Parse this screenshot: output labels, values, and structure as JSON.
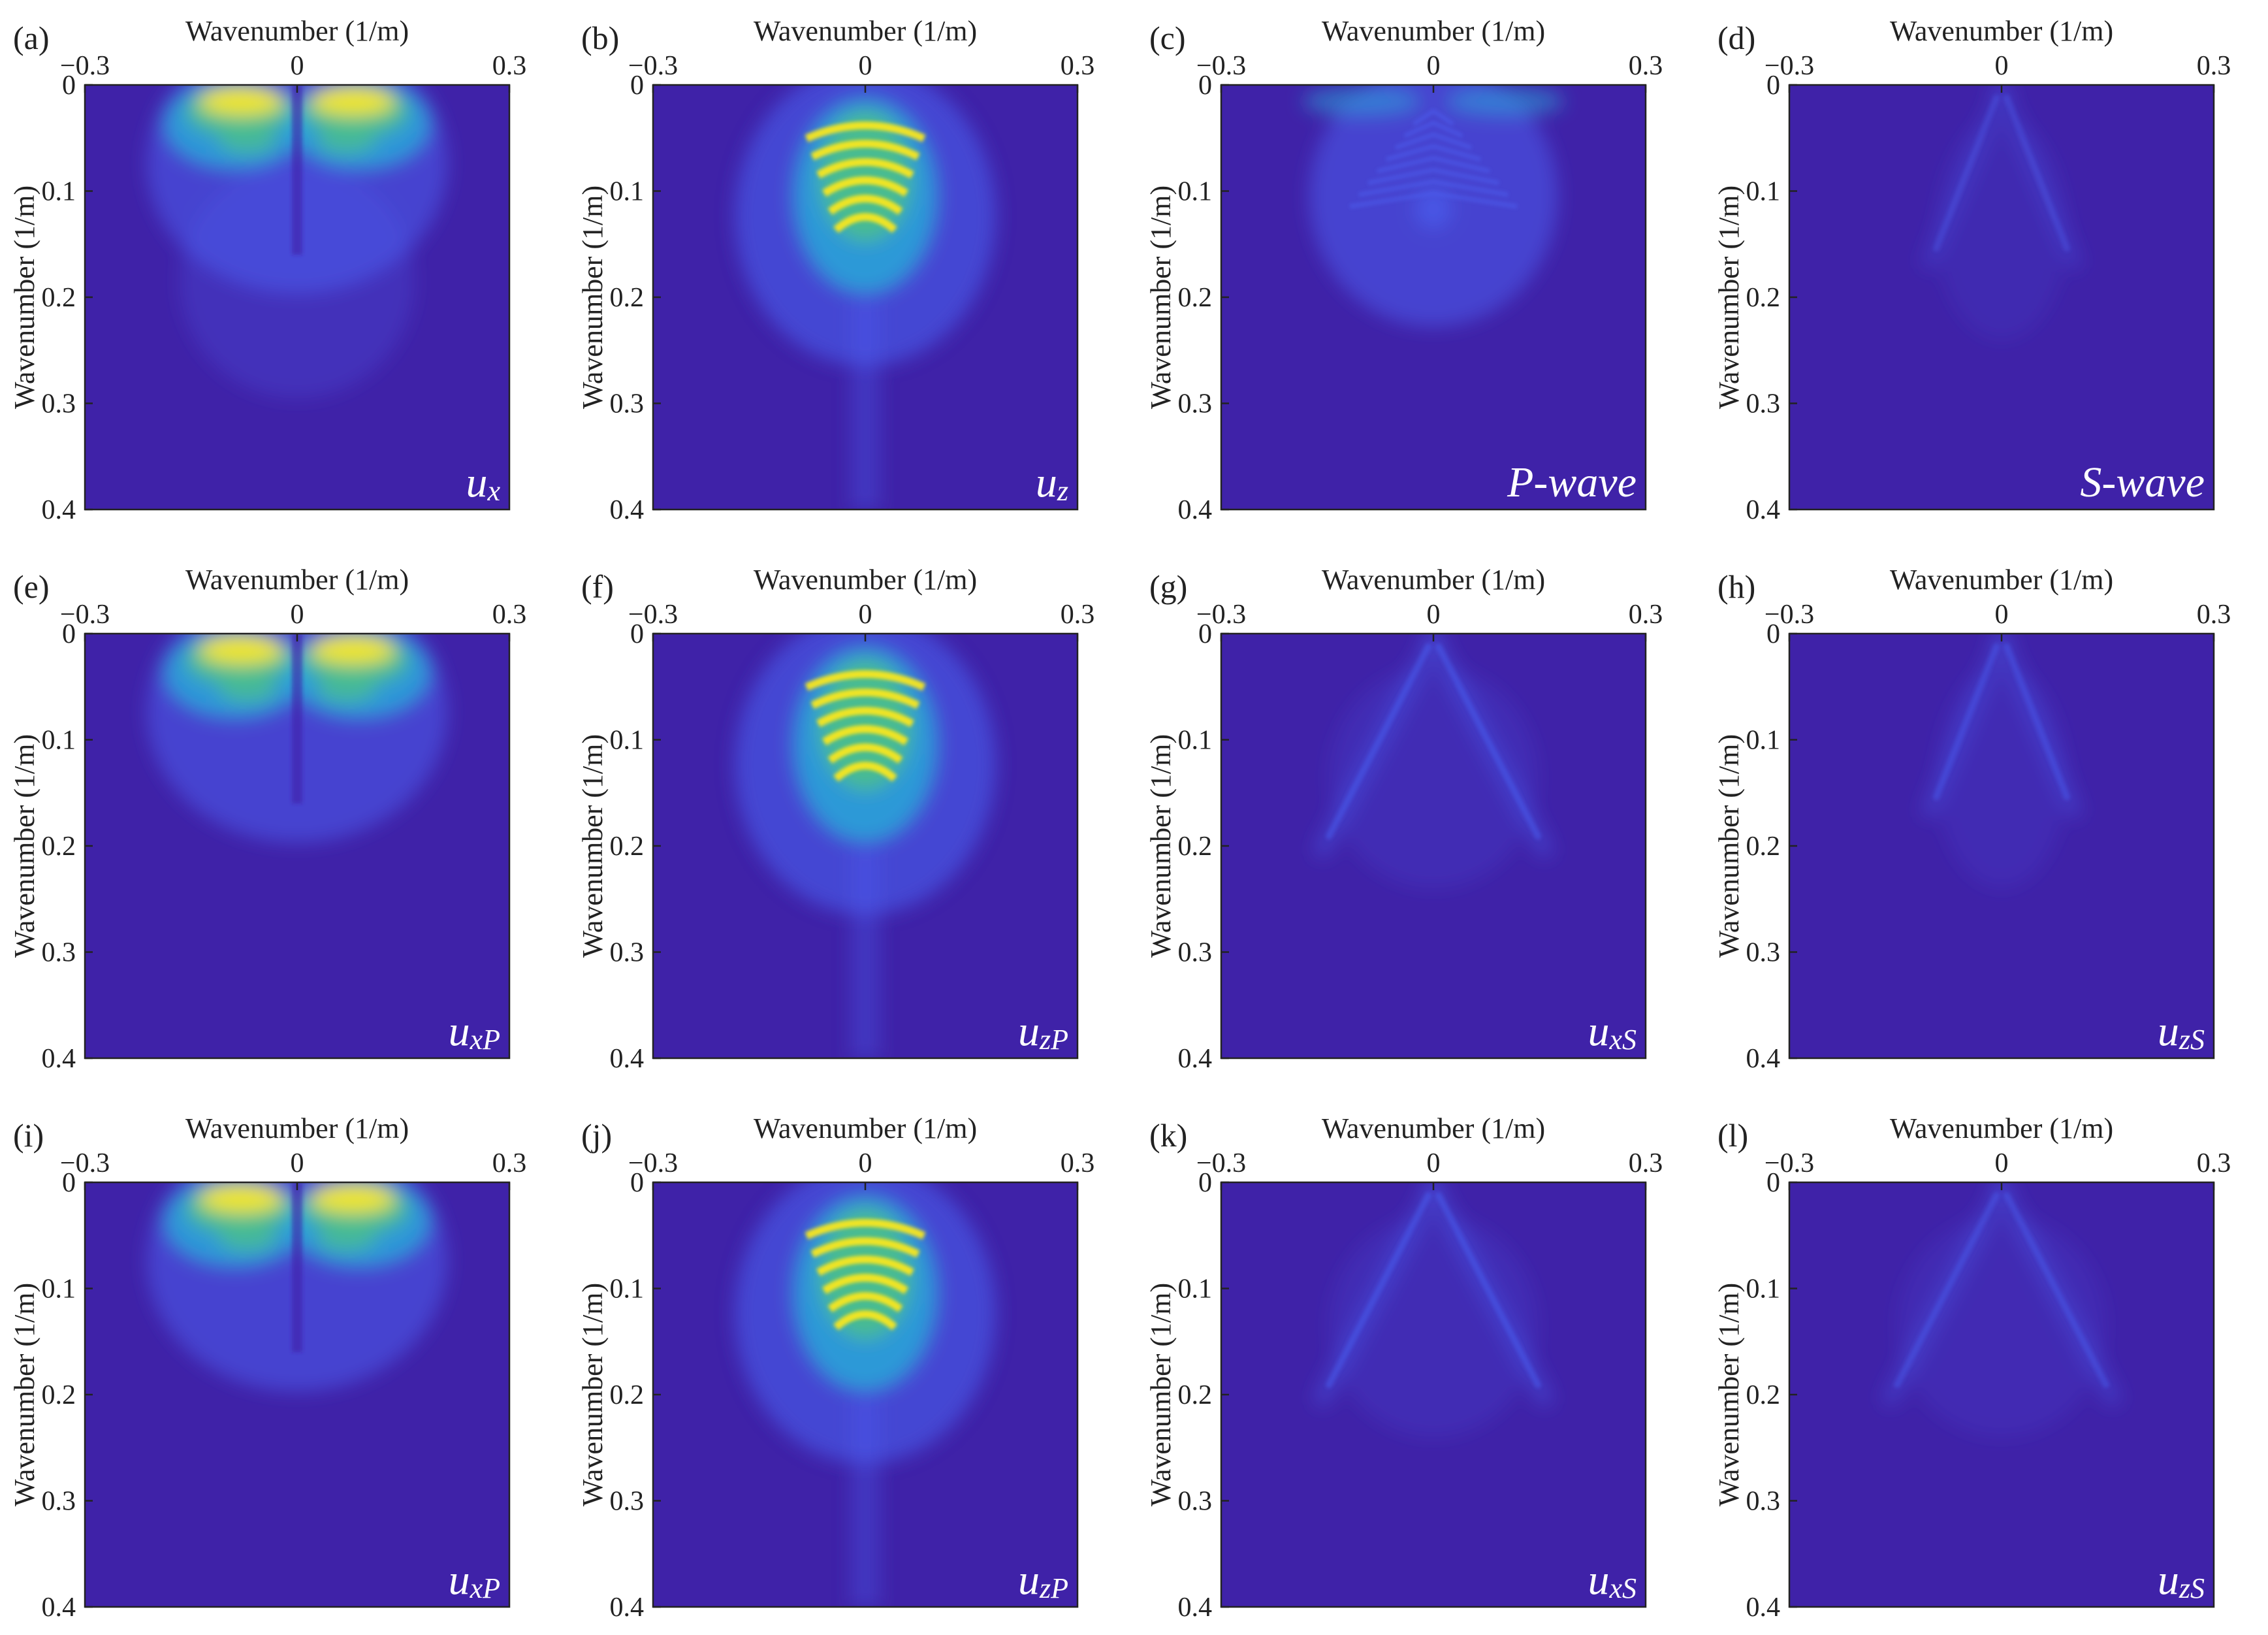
{
  "colors": {
    "background": "#3f22a8",
    "low": "#3f2cb6",
    "mid_blue": "#4a5ff0",
    "cyan": "#2aa8d8",
    "green": "#4bc08a",
    "yellow": "#f9e71e",
    "axis": "#222222",
    "component_text": "#ffffff"
  },
  "chart_data": [
    {
      "panel": "(a)",
      "type": "heatmap",
      "xlabel": "Wavenumber (1/m)",
      "ylabel": "Wavenumber (1/m)",
      "xlim": [
        -0.3,
        0.3
      ],
      "ylim": [
        0,
        0.4
      ],
      "y_reversed": true,
      "x_ticks": [
        "−0.3",
        "0",
        "0.3"
      ],
      "y_ticks": [
        "0",
        "0.1",
        "0.2",
        "0.3",
        "0.4"
      ],
      "component": {
        "base": "u",
        "sub": "x"
      },
      "pattern": "horizontal_lobes",
      "intensity": 1.0
    },
    {
      "panel": "(b)",
      "type": "heatmap",
      "xlabel": "Wavenumber (1/m)",
      "ylabel": "Wavenumber (1/m)",
      "xlim": [
        -0.3,
        0.3
      ],
      "ylim": [
        0,
        0.4
      ],
      "y_reversed": true,
      "x_ticks": [
        "−0.3",
        "0",
        "0.3"
      ],
      "y_ticks": [
        "0",
        "0.1",
        "0.2",
        "0.3",
        "0.4"
      ],
      "component": {
        "base": "u",
        "sub": "z"
      },
      "pattern": "vertical_arch",
      "intensity": 1.0
    },
    {
      "panel": "(c)",
      "type": "heatmap",
      "xlabel": "Wavenumber (1/m)",
      "ylabel": "Wavenumber (1/m)",
      "xlim": [
        -0.3,
        0.3
      ],
      "ylim": [
        0,
        0.4
      ],
      "y_reversed": true,
      "x_ticks": [
        "−0.3",
        "0",
        "0.3"
      ],
      "y_ticks": [
        "0",
        "0.1",
        "0.2",
        "0.3",
        "0.4"
      ],
      "component": {
        "base": "P-wave",
        "sub": ""
      },
      "pattern": "p_wave",
      "intensity": 0.45
    },
    {
      "panel": "(d)",
      "type": "heatmap",
      "xlabel": "Wavenumber (1/m)",
      "ylabel": "Wavenumber (1/m)",
      "xlim": [
        -0.3,
        0.3
      ],
      "ylim": [
        0,
        0.4
      ],
      "y_reversed": true,
      "x_ticks": [
        "−0.3",
        "0",
        "0.3"
      ],
      "y_ticks": [
        "0",
        "0.1",
        "0.2",
        "0.3",
        "0.4"
      ],
      "component": {
        "base": "S-wave",
        "sub": ""
      },
      "pattern": "s_narrow",
      "intensity": 0.18
    },
    {
      "panel": "(e)",
      "type": "heatmap",
      "xlabel": "Wavenumber (1/m)",
      "ylabel": "Wavenumber (1/m)",
      "xlim": [
        -0.3,
        0.3
      ],
      "ylim": [
        0,
        0.4
      ],
      "y_reversed": true,
      "x_ticks": [
        "−0.3",
        "0",
        "0.3"
      ],
      "y_ticks": [
        "0",
        "0.1",
        "0.2",
        "0.3",
        "0.4"
      ],
      "component": {
        "base": "u",
        "sub": "xP"
      },
      "pattern": "horizontal_lobes_clean",
      "intensity": 1.0
    },
    {
      "panel": "(f)",
      "type": "heatmap",
      "xlabel": "Wavenumber (1/m)",
      "ylabel": "Wavenumber (1/m)",
      "xlim": [
        -0.3,
        0.3
      ],
      "ylim": [
        0,
        0.4
      ],
      "y_reversed": true,
      "x_ticks": [
        "−0.3",
        "0",
        "0.3"
      ],
      "y_ticks": [
        "0",
        "0.1",
        "0.2",
        "0.3",
        "0.4"
      ],
      "component": {
        "base": "u",
        "sub": "zP"
      },
      "pattern": "vertical_arch",
      "intensity": 1.0
    },
    {
      "panel": "(g)",
      "type": "heatmap",
      "xlabel": "Wavenumber (1/m)",
      "ylabel": "Wavenumber (1/m)",
      "xlim": [
        -0.3,
        0.3
      ],
      "ylim": [
        0,
        0.4
      ],
      "y_reversed": true,
      "x_ticks": [
        "−0.3",
        "0",
        "0.3"
      ],
      "y_ticks": [
        "0",
        "0.1",
        "0.2",
        "0.3",
        "0.4"
      ],
      "component": {
        "base": "u",
        "sub": "xS"
      },
      "pattern": "s_wide",
      "intensity": 0.4
    },
    {
      "panel": "(h)",
      "type": "heatmap",
      "xlabel": "Wavenumber (1/m)",
      "ylabel": "Wavenumber (1/m)",
      "xlim": [
        -0.3,
        0.3
      ],
      "ylim": [
        0,
        0.4
      ],
      "y_reversed": true,
      "x_ticks": [
        "−0.3",
        "0",
        "0.3"
      ],
      "y_ticks": [
        "0",
        "0.1",
        "0.2",
        "0.3",
        "0.4"
      ],
      "component": {
        "base": "u",
        "sub": "zS"
      },
      "pattern": "s_narrow",
      "intensity": 0.32
    },
    {
      "panel": "(i)",
      "type": "heatmap",
      "xlabel": "Wavenumber (1/m)",
      "ylabel": "Wavenumber (1/m)",
      "xlim": [
        -0.3,
        0.3
      ],
      "ylim": [
        0,
        0.4
      ],
      "y_reversed": true,
      "x_ticks": [
        "−0.3",
        "0",
        "0.3"
      ],
      "y_ticks": [
        "0",
        "0.1",
        "0.2",
        "0.3",
        "0.4"
      ],
      "component": {
        "base": "u",
        "sub": "xP"
      },
      "pattern": "horizontal_lobes_clean",
      "intensity": 1.0
    },
    {
      "panel": "(j)",
      "type": "heatmap",
      "xlabel": "Wavenumber (1/m)",
      "ylabel": "Wavenumber (1/m)",
      "xlim": [
        -0.3,
        0.3
      ],
      "ylim": [
        0,
        0.4
      ],
      "y_reversed": true,
      "x_ticks": [
        "−0.3",
        "0",
        "0.3"
      ],
      "y_ticks": [
        "0",
        "0.1",
        "0.2",
        "0.3",
        "0.4"
      ],
      "component": {
        "base": "u",
        "sub": "zP"
      },
      "pattern": "vertical_arch",
      "intensity": 1.0
    },
    {
      "panel": "(k)",
      "type": "heatmap",
      "xlabel": "Wavenumber (1/m)",
      "ylabel": "Wavenumber (1/m)",
      "xlim": [
        -0.3,
        0.3
      ],
      "ylim": [
        0,
        0.4
      ],
      "y_reversed": true,
      "x_ticks": [
        "−0.3",
        "0",
        "0.3"
      ],
      "y_ticks": [
        "0",
        "0.1",
        "0.2",
        "0.3",
        "0.4"
      ],
      "component": {
        "base": "u",
        "sub": "xS"
      },
      "pattern": "s_wide",
      "intensity": 0.4
    },
    {
      "panel": "(l)",
      "type": "heatmap",
      "xlabel": "Wavenumber (1/m)",
      "ylabel": "Wavenumber (1/m)",
      "xlim": [
        -0.3,
        0.3
      ],
      "ylim": [
        0,
        0.4
      ],
      "y_reversed": true,
      "x_ticks": [
        "−0.3",
        "0",
        "0.3"
      ],
      "y_ticks": [
        "0",
        "0.1",
        "0.2",
        "0.3",
        "0.4"
      ],
      "component": {
        "base": "u",
        "sub": "zS"
      },
      "pattern": "s_wide",
      "intensity": 0.3
    }
  ]
}
